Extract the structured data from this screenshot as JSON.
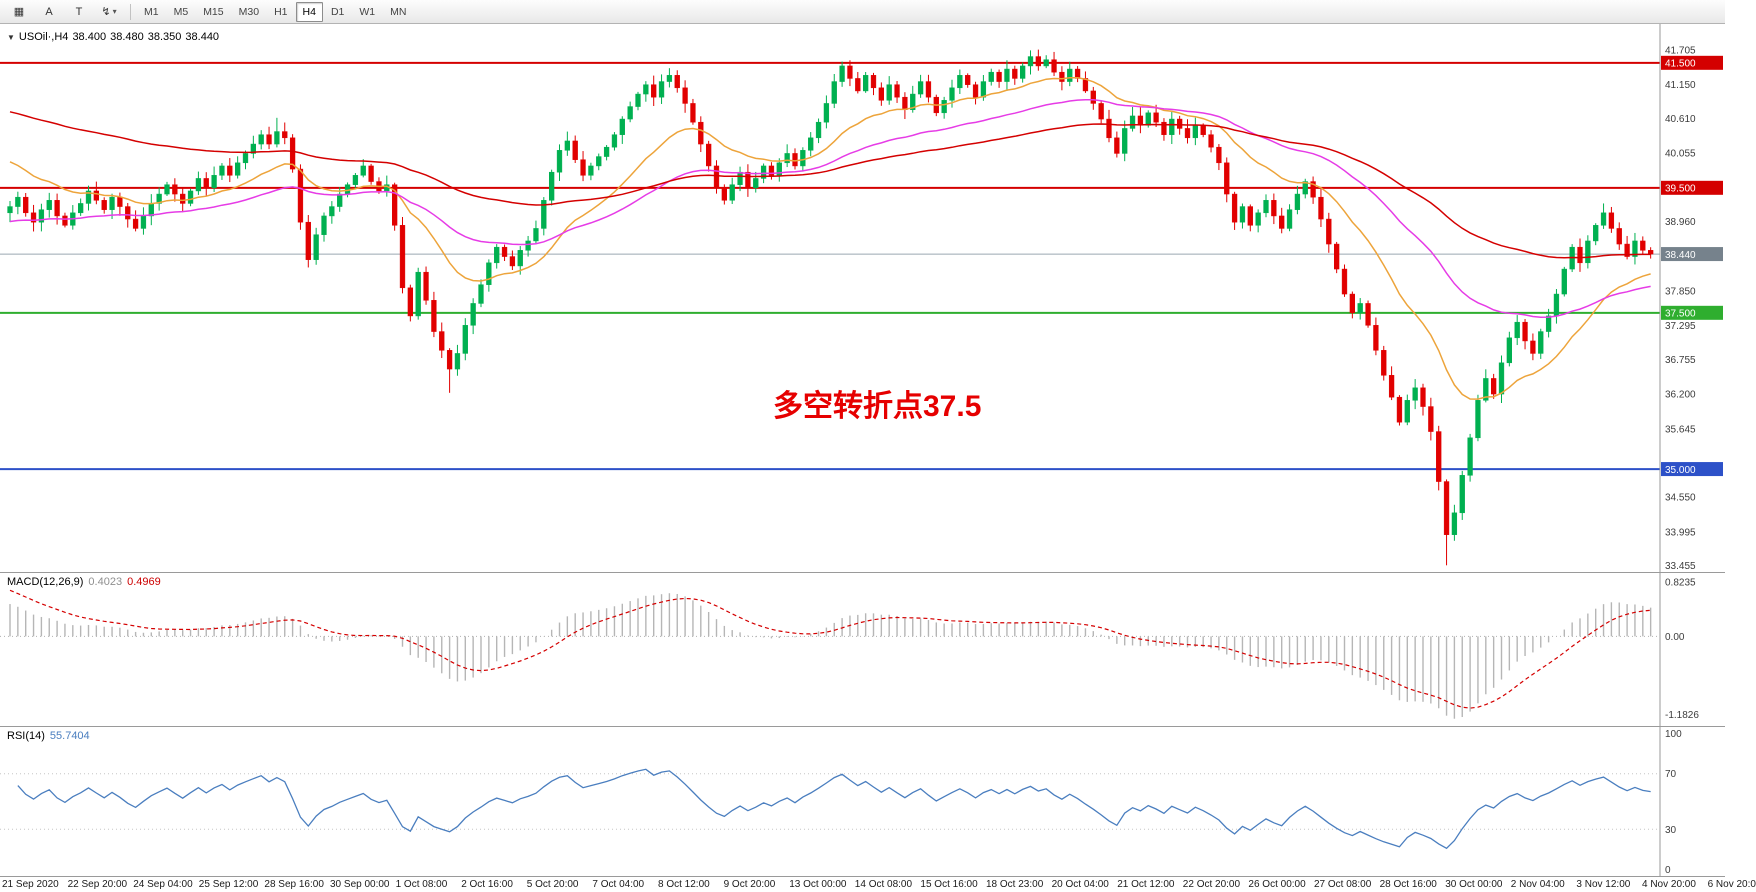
{
  "toolbar": {
    "tools": [
      {
        "id": "charts-grid",
        "glyph": "▦"
      },
      {
        "id": "annotate-text-a",
        "glyph": "A"
      },
      {
        "id": "annotate-text-t",
        "glyph": "T"
      },
      {
        "id": "cursor-tool",
        "glyph": "↯",
        "caret": "▾"
      }
    ],
    "timeframes": [
      {
        "label": "M1",
        "active": false
      },
      {
        "label": "M5",
        "active": false
      },
      {
        "label": "M15",
        "active": false
      },
      {
        "label": "M30",
        "active": false
      },
      {
        "label": "H1",
        "active": false
      },
      {
        "label": "H4",
        "active": true
      },
      {
        "label": "D1",
        "active": false
      },
      {
        "label": "W1",
        "active": false
      },
      {
        "label": "MN",
        "active": false
      }
    ]
  },
  "chart": {
    "title": {
      "collapse": "▼",
      "symbol": "USOil·,H4",
      "open": "38.400",
      "high": "38.480",
      "low": "38.350",
      "close": "38.440"
    }
  },
  "chart_data": {
    "type": "candlestick",
    "symbol": "USOil",
    "timeframe": "H4",
    "title": "USOil·,H4 38.400 38.480 38.350 38.440",
    "annotation": {
      "text": "多空转折点37.5",
      "color": "#e60000"
    },
    "price_axis": {
      "min": 33.3,
      "max": 41.95,
      "ticks": [
        41.705,
        41.15,
        40.61,
        40.055,
        38.96,
        37.85,
        37.295,
        36.755,
        36.2,
        35.645,
        34.55,
        33.995,
        33.455
      ]
    },
    "levels": [
      {
        "price": 41.5,
        "label": "41.500",
        "color": "#d40000",
        "badge": "#d40000",
        "width": 2
      },
      {
        "price": 39.5,
        "label": "39.500",
        "color": "#d40000",
        "badge": "#d40000",
        "width": 2
      },
      {
        "price": 38.44,
        "label": "38.440",
        "color": "#9aa6b0",
        "badge": "#76828c",
        "width": 1
      },
      {
        "price": 37.5,
        "label": "37.500",
        "color": "#2fae2f",
        "badge": "#2fae2f",
        "width": 2
      },
      {
        "price": 35.0,
        "label": "35.000",
        "color": "#2d51c8",
        "badge": "#2d51c8",
        "width": 2
      }
    ],
    "candles": {
      "up_color": "#00b050",
      "down_color": "#e10000",
      "first_open": 39.1,
      "closes": [
        39.2,
        39.35,
        39.1,
        38.95,
        39.15,
        39.3,
        39.05,
        38.9,
        39.1,
        39.25,
        39.45,
        39.3,
        39.15,
        39.35,
        39.2,
        39.0,
        38.85,
        39.05,
        39.25,
        39.4,
        39.55,
        39.4,
        39.25,
        39.45,
        39.65,
        39.5,
        39.7,
        39.85,
        39.7,
        39.9,
        40.05,
        40.2,
        40.35,
        40.2,
        40.4,
        40.3,
        39.8,
        38.95,
        38.35,
        38.75,
        39.05,
        39.2,
        39.4,
        39.55,
        39.7,
        39.85,
        39.6,
        39.45,
        39.55,
        38.9,
        37.9,
        37.45,
        38.15,
        37.7,
        37.2,
        36.9,
        36.6,
        36.85,
        37.3,
        37.65,
        37.95,
        38.3,
        38.55,
        38.4,
        38.25,
        38.5,
        38.65,
        38.85,
        39.3,
        39.75,
        40.1,
        40.25,
        39.95,
        39.7,
        39.85,
        40.0,
        40.15,
        40.35,
        40.6,
        40.8,
        41.0,
        41.15,
        40.95,
        41.2,
        41.3,
        41.1,
        40.85,
        40.55,
        40.2,
        39.85,
        39.5,
        39.3,
        39.55,
        39.75,
        39.5,
        39.65,
        39.85,
        39.7,
        39.9,
        40.05,
        39.85,
        40.1,
        40.3,
        40.55,
        40.85,
        41.2,
        41.45,
        41.25,
        41.05,
        41.3,
        41.1,
        40.9,
        41.15,
        40.95,
        40.75,
        41.0,
        41.2,
        40.95,
        40.7,
        40.9,
        41.1,
        41.3,
        41.15,
        40.95,
        41.2,
        41.35,
        41.2,
        41.4,
        41.25,
        41.45,
        41.6,
        41.45,
        41.55,
        41.35,
        41.2,
        41.4,
        41.25,
        41.05,
        40.85,
        40.6,
        40.3,
        40.05,
        40.45,
        40.65,
        40.5,
        40.7,
        40.55,
        40.35,
        40.6,
        40.45,
        40.3,
        40.5,
        40.35,
        40.15,
        39.9,
        39.4,
        38.95,
        39.2,
        38.9,
        39.1,
        39.3,
        39.05,
        38.85,
        39.15,
        39.4,
        39.6,
        39.35,
        39.0,
        38.6,
        38.2,
        37.8,
        37.5,
        37.65,
        37.3,
        36.9,
        36.5,
        36.15,
        35.75,
        36.1,
        36.3,
        36.0,
        35.6,
        34.8,
        33.95,
        34.3,
        34.9,
        35.5,
        36.1,
        36.45,
        36.2,
        36.7,
        37.1,
        37.35,
        37.05,
        36.85,
        37.2,
        37.45,
        37.8,
        38.2,
        38.55,
        38.3,
        38.65,
        38.9,
        39.1,
        38.85,
        38.6,
        38.4,
        38.65,
        38.5,
        38.44
      ],
      "wick_overrides": {
        "34": {
          "h": 40.62
        },
        "56": {
          "l": 36.22
        },
        "106": {
          "h": 41.52
        },
        "130": {
          "h": 41.7
        },
        "183": {
          "l": 33.46
        },
        "203": {
          "h": 39.25
        }
      }
    },
    "moving_averages": [
      {
        "name": "ma-fast",
        "period": 18,
        "init": 40.0,
        "color": "#eda43b"
      },
      {
        "name": "ma-mid",
        "period": 45,
        "init": 38.95,
        "color": "#e63ce6"
      },
      {
        "name": "ma-slow",
        "period": 90,
        "init": 40.75,
        "color": "#d40000"
      }
    ],
    "macd": {
      "name": "MACD(12,26,9)",
      "main_value": "0.4023",
      "signal_value": "0.4969",
      "fast": 12,
      "slow": 26,
      "signal": 9,
      "axis_labels": [
        0.8235,
        0.0,
        -1.1826
      ],
      "axis_texts": [
        "0.8235",
        "0.00",
        "-1.1826"
      ],
      "init": {
        "ema12_offset": 0.25,
        "ema26_offset": -0.3,
        "signal_init": 0.75
      },
      "histogram_color": "#b6b6b6",
      "signal_color": "#d40000"
    },
    "rsi": {
      "name": "RSI(14)",
      "value": "55.7404",
      "period": 14,
      "levels": [
        100,
        70,
        30,
        0
      ],
      "seed": {
        "avg_gain": 0.1,
        "avg_loss": 0.07
      },
      "line_color": "#4a7ebf"
    },
    "time_axis": [
      "21 Sep 2020",
      "22 Sep 20:00",
      "24 Sep 04:00",
      "25 Sep 12:00",
      "28 Sep 16:00",
      "30 Sep 00:00",
      "1 Oct 08:00",
      "2 Oct 16:00",
      "5 Oct 20:00",
      "7 Oct 04:00",
      "8 Oct 12:00",
      "9 Oct 20:00",
      "13 Oct 00:00",
      "14 Oct 08:00",
      "15 Oct 16:00",
      "18 Oct 23:00",
      "20 Oct 04:00",
      "21 Oct 12:00",
      "22 Oct 20:00",
      "26 Oct 00:00",
      "27 Oct 08:00",
      "28 Oct 16:00",
      "30 Oct 00:00",
      "2 Nov 04:00",
      "3 Nov 12:00",
      "4 Nov 20:00",
      "6 Nov 20:0"
    ]
  }
}
